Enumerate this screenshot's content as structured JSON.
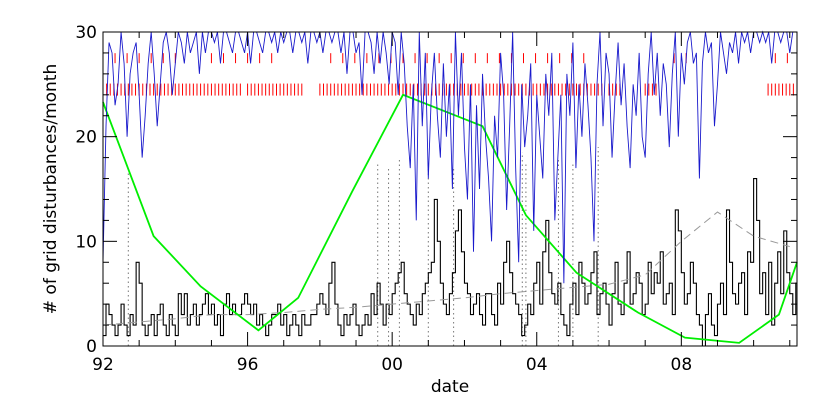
{
  "chart_data": {
    "type": "line",
    "title": "",
    "xlabel": "date",
    "ylabel": "# of grid disturbances/month",
    "xlim": [
      1992.0,
      2011.2
    ],
    "ylim": [
      0,
      30
    ],
    "x_ticks": [
      1992,
      1996,
      2000,
      2004,
      2008
    ],
    "x_tick_labels": [
      "92",
      "96",
      "00",
      "04",
      "08"
    ],
    "y_ticks": [
      0,
      10,
      20,
      30
    ],
    "y_tick_labels": [
      "0",
      "10",
      "20",
      "30"
    ],
    "grid": false,
    "legend": "none",
    "colors": {
      "disturbances": "#000000",
      "smoothed": "#999999",
      "sunspot_cycle": "#00ee00",
      "blue_series": "#1a1acc",
      "red_events": "#ff0000",
      "dotted_lines": "#777777"
    },
    "series": [
      {
        "key": "disturbances",
        "style": "step",
        "step_months": 1,
        "x_start": 1992.0,
        "values": [
          1,
          4,
          3,
          2,
          1,
          2,
          4,
          2,
          1,
          3,
          2,
          8,
          6,
          2,
          1,
          2,
          3,
          1,
          3,
          4,
          2,
          1,
          3,
          2,
          1,
          5,
          3,
          5,
          2,
          3,
          4,
          2,
          3,
          4,
          5,
          3,
          4,
          2,
          3,
          1,
          4,
          5,
          3,
          4,
          3,
          3,
          4,
          5,
          4,
          3,
          4,
          2,
          3,
          2,
          1,
          2,
          3,
          3,
          4,
          2,
          3,
          1,
          2,
          3,
          2,
          1,
          3,
          2,
          2,
          3,
          3,
          4,
          5,
          4,
          3,
          6,
          8,
          4,
          2,
          1,
          3,
          2,
          3,
          4,
          2,
          1,
          2,
          3,
          2,
          5,
          3,
          6,
          4,
          2,
          4,
          3,
          5,
          6,
          7,
          8,
          5,
          4,
          3,
          2,
          4,
          3,
          5,
          6,
          7,
          8,
          14,
          10,
          6,
          4,
          3,
          5,
          7,
          11,
          13,
          9,
          6,
          5,
          3,
          4,
          5,
          3,
          2,
          5,
          5,
          3,
          2,
          6,
          4,
          8,
          10,
          7,
          5,
          4,
          3,
          1,
          2,
          4,
          3,
          6,
          8,
          4,
          9,
          12,
          7,
          5,
          4,
          6,
          3,
          2,
          1,
          4,
          6,
          3,
          8,
          6,
          4,
          5,
          7,
          9,
          3,
          5,
          6,
          4,
          2,
          5,
          8,
          4,
          3,
          6,
          9,
          4,
          5,
          7,
          6,
          3,
          4,
          8,
          5,
          7,
          6,
          9,
          4,
          5,
          6,
          3,
          13,
          11,
          7,
          4,
          5,
          8,
          6,
          3,
          2,
          0,
          3,
          5,
          2,
          1,
          4,
          6,
          3,
          13,
          8,
          5,
          4,
          6,
          7,
          3,
          9,
          8,
          16,
          12,
          5,
          7,
          3,
          8,
          2,
          6,
          9,
          5,
          11,
          7,
          5,
          3,
          6,
          9,
          4,
          8,
          12,
          18,
          10,
          6,
          4,
          1,
          2,
          5,
          3,
          7,
          2,
          16,
          11,
          8,
          13,
          20,
          15,
          7,
          9,
          17,
          22,
          12,
          6,
          30,
          14,
          8,
          19,
          26,
          11,
          7,
          5,
          18,
          22,
          15,
          9,
          4,
          2,
          17,
          11,
          6,
          20,
          9,
          14,
          7,
          3,
          5,
          12,
          23,
          10,
          6,
          16,
          4,
          2,
          8,
          11,
          0,
          9,
          24,
          6,
          3,
          7,
          1,
          12,
          5,
          8,
          9
        ]
      },
      {
        "key": "smoothed",
        "style": "dashed",
        "x": [
          1992.0,
          1993.0,
          1994.0,
          1995.0,
          1996.0,
          1997.0,
          1998.0,
          1999.0,
          2000.0,
          2001.0,
          2002.0,
          2003.0,
          2004.0,
          2005.0,
          2006.0,
          2007.0,
          2008.0,
          2009.0,
          2010.0,
          2011.0
        ],
        "y": [
          2.0,
          2.3,
          2.6,
          3.0,
          3.0,
          3.2,
          3.5,
          3.7,
          4.0,
          4.3,
          4.6,
          5.0,
          5.3,
          5.6,
          5.9,
          6.8,
          10.0,
          12.8,
          10.5,
          9.5
        ]
      },
      {
        "key": "sunspot_cycle",
        "style": "line",
        "x": [
          1992.0,
          1993.4,
          1994.7,
          1996.3,
          1997.4,
          1998.9,
          2000.3,
          2002.5,
          2003.7,
          2005.1,
          2006.8,
          2008.1,
          2009.6,
          2010.7,
          2011.2
        ],
        "y": [
          23.3,
          10.5,
          5.7,
          1.5,
          4.6,
          14.8,
          24.0,
          21.0,
          12.5,
          7.0,
          3.2,
          0.8,
          0.3,
          3.0,
          8.0
        ]
      },
      {
        "key": "blue_series",
        "style": "line",
        "step_months": 1,
        "x_start": 1992.0,
        "values": [
          8,
          21,
          29,
          28,
          23,
          25,
          30,
          27,
          20,
          26,
          28,
          29,
          24,
          18,
          22,
          27,
          30,
          26,
          21,
          25,
          29,
          30,
          28,
          24,
          27,
          30,
          29,
          27,
          30,
          28,
          29,
          30,
          26,
          30,
          28,
          30,
          30,
          29,
          30,
          27,
          30,
          30,
          29,
          28,
          30,
          30,
          29,
          28,
          30,
          27,
          30,
          30,
          29,
          28,
          30,
          30,
          29,
          30,
          28,
          30,
          29,
          30,
          30,
          28,
          30,
          30,
          29,
          30,
          27,
          30,
          30,
          29,
          30,
          28,
          30,
          30,
          29,
          30,
          30,
          28,
          30,
          26,
          30,
          30,
          28,
          29,
          24,
          30,
          30,
          29,
          26,
          30,
          27,
          30,
          28,
          25,
          30,
          29,
          24,
          30,
          27,
          21,
          17,
          25,
          12,
          30,
          21,
          28,
          16,
          24,
          28,
          22,
          18,
          27,
          20,
          25,
          15,
          30,
          22,
          28,
          19,
          14,
          25,
          9,
          23,
          15,
          26,
          20,
          16,
          10,
          22,
          18,
          28,
          24,
          13,
          21,
          30,
          17,
          8,
          25,
          19,
          22,
          27,
          11,
          24,
          20,
          16,
          26,
          22,
          28,
          12,
          18,
          24,
          6,
          26,
          22,
          29,
          17,
          25,
          20,
          27,
          23,
          18,
          10,
          25,
          30,
          21,
          28,
          26,
          18,
          24,
          29,
          23,
          27,
          21,
          17,
          25,
          22,
          28,
          20,
          18,
          26,
          30,
          24,
          28,
          22,
          27,
          25,
          19,
          26,
          30,
          20,
          28,
          25,
          29,
          30,
          27,
          28,
          16,
          27,
          30,
          28,
          29,
          21,
          25,
          30,
          28,
          26,
          29,
          28,
          30,
          27,
          30,
          29,
          30,
          28,
          30,
          30,
          29,
          30,
          29,
          30,
          27,
          30,
          30,
          29,
          30,
          30,
          28,
          30,
          30,
          29,
          30,
          28,
          30,
          29,
          30,
          30,
          30,
          28,
          30,
          29,
          30,
          30,
          27,
          30,
          29,
          30,
          30,
          28,
          30,
          29,
          30,
          30,
          30,
          28,
          30,
          30,
          27,
          30,
          29,
          30,
          30,
          28,
          30,
          29,
          30,
          30,
          30,
          30,
          30,
          28,
          29,
          30,
          30,
          27
        ]
      }
    ],
    "events": {
      "key": "red_events",
      "bands": [
        {
          "y": 24.5,
          "ticks_per_year": 10,
          "ranges": [
            [
              1992.0,
              1995.8
            ],
            [
              1996.0,
              1997.5
            ],
            [
              1998.0,
              2005.8
            ],
            [
              2006.0,
              2006.3
            ],
            [
              2007.0,
              2007.3
            ],
            [
              2010.4,
              2011.1
            ]
          ]
        },
        {
          "y": 27.5,
          "ticks_per_year": 3,
          "ranges": [
            [
              1992.0,
              1994.2
            ],
            [
              1995.0,
              1996.8
            ],
            [
              1998.3,
              2005.3
            ],
            [
              2007.8,
              2008.2
            ],
            [
              2010.6,
              2011.0
            ]
          ]
        }
      ]
    },
    "markers": {
      "key": "dotted_lines",
      "x": [
        1992.7,
        1999.6,
        1999.9,
        2000.2,
        2001.0,
        2001.7,
        2003.6,
        2003.7,
        2004.6,
        2005.0,
        2005.7
      ],
      "y": [
        16.5,
        17.5,
        17.0,
        18.0,
        17.5,
        17.0,
        18.5,
        17.5,
        18.0,
        17.5,
        19.0
      ]
    }
  }
}
